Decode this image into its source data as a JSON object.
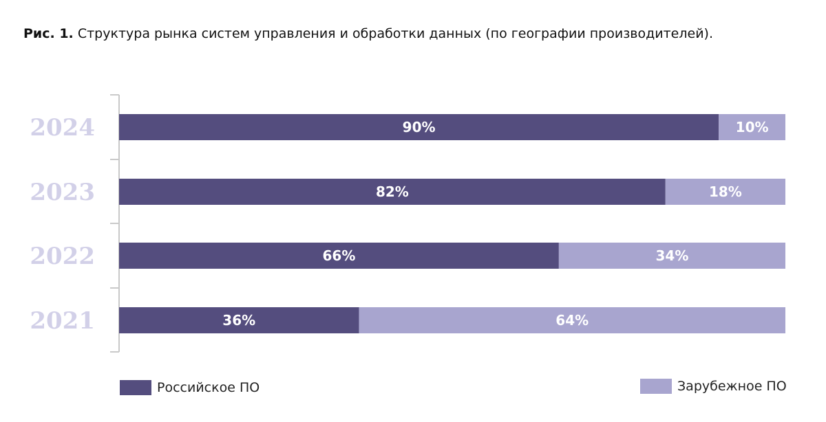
{
  "caption": {
    "label": "Рис. 1.",
    "text": "Структура рынка систем управления и обработки данных (по географии производителей)."
  },
  "colors": {
    "russian": "#544d7e",
    "foreign": "#a8a5cf",
    "year_label": "#d2d0e8",
    "axis": "#c9c9c9"
  },
  "chart_data": {
    "type": "bar",
    "orientation": "horizontal",
    "stacked": true,
    "title": "Структура рынка систем управления и обработки данных (по географии производителей).",
    "categories": [
      "2024",
      "2023",
      "2022",
      "2021"
    ],
    "series": [
      {
        "name": "Российское ПО",
        "values": [
          90,
          82,
          66,
          36
        ],
        "labels": [
          "90%",
          "82%",
          "66%",
          "36%"
        ]
      },
      {
        "name": "Зарубежное ПО",
        "values": [
          10,
          18,
          34,
          64
        ],
        "labels": [
          "10%",
          "18%",
          "34%",
          "64%"
        ]
      }
    ],
    "xlim": [
      0,
      100
    ],
    "unit": "%",
    "legend_position": "bottom"
  },
  "legend": {
    "russian_label": "Российское ПО",
    "foreign_label": "Зарубежное ПО"
  }
}
